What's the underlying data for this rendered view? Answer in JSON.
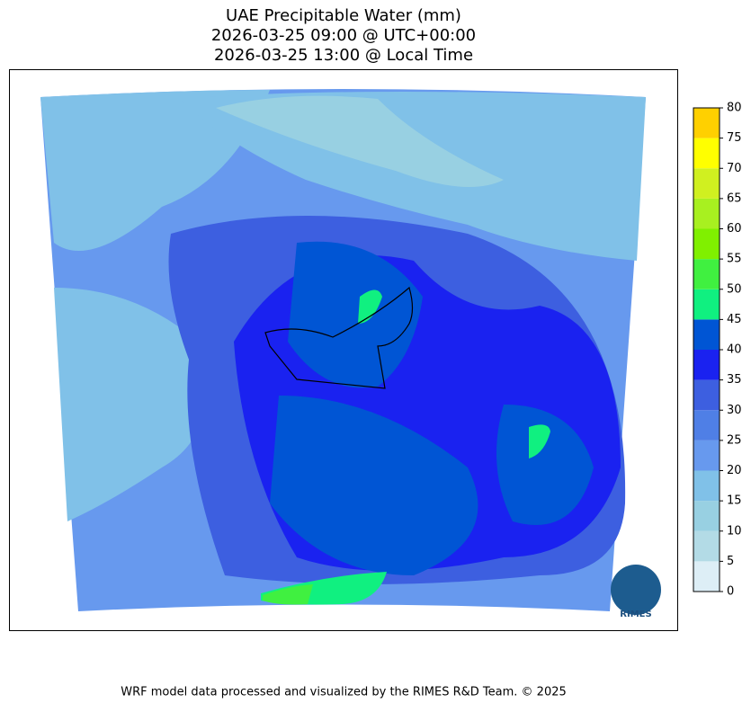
{
  "title_lines": [
    "UAE Precipitable Water (mm)",
    "2026-03-25 09:00 @ UTC+00:00",
    "2026-03-25 13:00 @ Local Time"
  ],
  "colorbar": {
    "lim": [
      0,
      80
    ],
    "ticks": [
      0,
      5,
      10,
      15,
      20,
      25,
      30,
      35,
      40,
      45,
      50,
      55,
      60,
      65,
      70,
      75,
      80
    ],
    "colors": [
      "#ddeef6",
      "#b3dbe6",
      "#98d0e2",
      "#80c1e8",
      "#6799ee",
      "#4f7fe6",
      "#3d5fe0",
      "#1a22f0",
      "#0055d4",
      "#10f080",
      "#40f040",
      "#80f000",
      "#a8f020",
      "#d0f020",
      "#ffff00",
      "#ffd000"
    ]
  },
  "logo": "RIMES",
  "footer": "WRF model data processed and visualized by the RIMES R&D Team. © 2025"
}
